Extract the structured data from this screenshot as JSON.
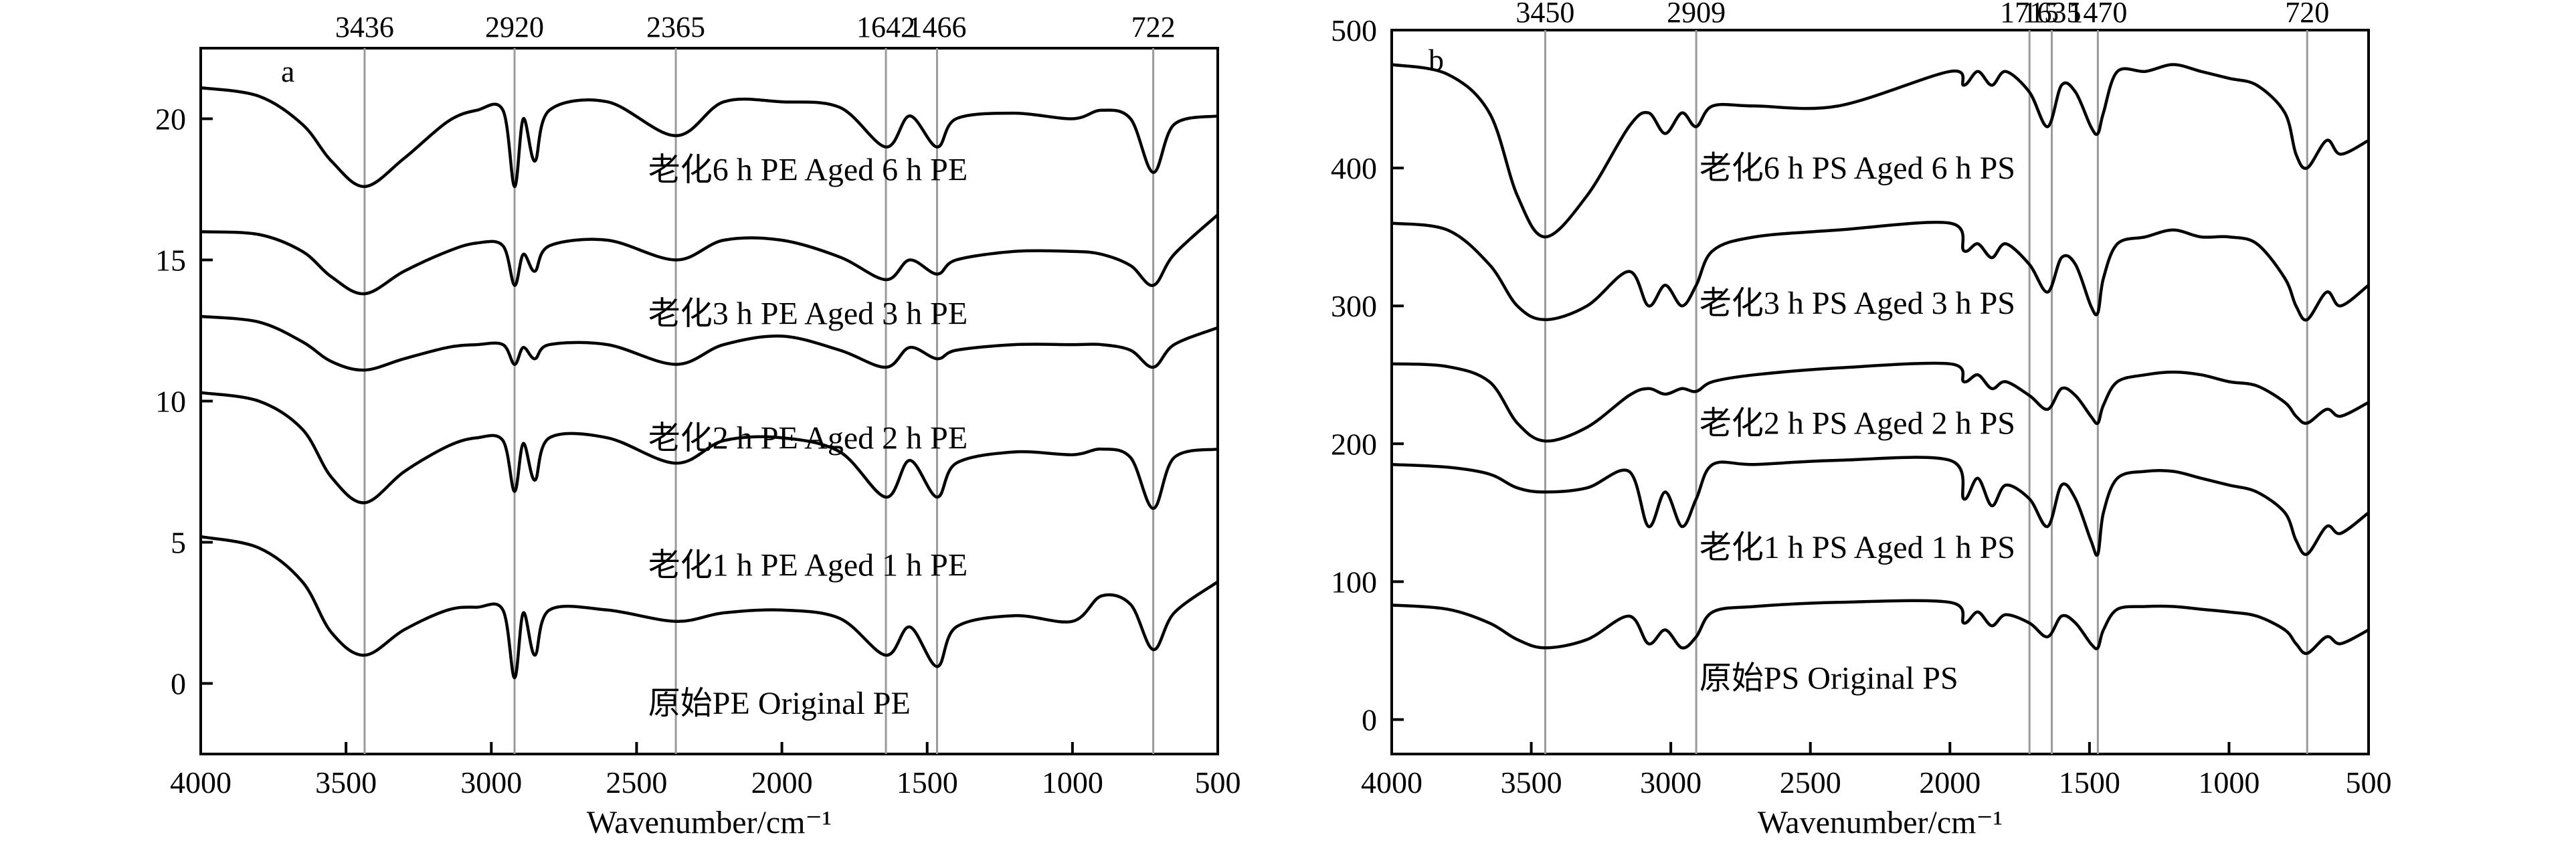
{
  "chart_data": [
    {
      "type": "line",
      "panel_label": "a",
      "xlabel": "Wavenumber/cm⁻¹",
      "ylabel": "",
      "xlim": [
        4000,
        500
      ],
      "ylim": [
        -2.5,
        22.5
      ],
      "x_reversed": true,
      "xticks": [
        4000,
        3500,
        3000,
        2500,
        2000,
        1500,
        1000,
        500
      ],
      "yticks": [
        0,
        5,
        10,
        15,
        20
      ],
      "peak_lines": [
        3436,
        2920,
        2365,
        1642,
        1466,
        722
      ],
      "peak_labels": [
        "3436",
        "2920",
        "2365",
        "1642",
        "1466",
        "722"
      ],
      "grid": false,
      "series": [
        {
          "label": "老化6 h PE Aged 6 h PE",
          "label_y": 18.2,
          "x": [
            4000,
            3800,
            3650,
            3550,
            3436,
            3300,
            3150,
            3050,
            2960,
            2920,
            2890,
            2850,
            2800,
            2600,
            2365,
            2200,
            2000,
            1800,
            1642,
            1560,
            1466,
            1400,
            1200,
            1000,
            900,
            800,
            722,
            650,
            500
          ],
          "y": [
            21.1,
            20.8,
            19.8,
            18.5,
            17.6,
            18.6,
            19.9,
            20.3,
            20.3,
            17.6,
            20.0,
            18.5,
            20.3,
            20.6,
            19.4,
            20.6,
            20.6,
            20.4,
            19.0,
            20.1,
            19.0,
            20.0,
            20.2,
            20.0,
            20.3,
            20.0,
            18.1,
            19.8,
            20.1
          ]
        },
        {
          "label": "老化3 h PE Aged 3 h PE",
          "label_y": 13.1,
          "x": [
            4000,
            3800,
            3650,
            3550,
            3436,
            3300,
            3150,
            3050,
            2960,
            2920,
            2890,
            2850,
            2800,
            2600,
            2365,
            2200,
            2000,
            1800,
            1642,
            1560,
            1466,
            1400,
            1200,
            1000,
            900,
            800,
            722,
            650,
            500
          ],
          "y": [
            16.0,
            15.9,
            15.3,
            14.4,
            13.8,
            14.6,
            15.3,
            15.6,
            15.5,
            14.1,
            15.2,
            14.6,
            15.5,
            15.7,
            15.0,
            15.7,
            15.7,
            15.1,
            14.3,
            15.0,
            14.5,
            15.0,
            15.3,
            15.3,
            15.2,
            14.8,
            14.1,
            15.2,
            16.6
          ]
        },
        {
          "label": "老化2 h PE Aged 2 h PE",
          "label_y": 8.7,
          "x": [
            4000,
            3800,
            3650,
            3550,
            3436,
            3300,
            3150,
            3050,
            2960,
            2920,
            2890,
            2850,
            2800,
            2600,
            2365,
            2200,
            2000,
            1800,
            1642,
            1560,
            1466,
            1400,
            1200,
            1000,
            900,
            800,
            722,
            650,
            500
          ],
          "y": [
            13.0,
            12.8,
            12.1,
            11.4,
            11.1,
            11.5,
            11.9,
            12.0,
            12.0,
            11.3,
            11.9,
            11.5,
            12.0,
            12.0,
            11.3,
            12.0,
            12.3,
            11.8,
            11.2,
            11.9,
            11.5,
            11.8,
            12.0,
            12.0,
            12.0,
            11.8,
            11.2,
            12.0,
            12.6
          ]
        },
        {
          "label": "老化1 h PE Aged 1 h PE",
          "label_y": 4.2,
          "x": [
            4000,
            3800,
            3650,
            3550,
            3436,
            3300,
            3150,
            3050,
            2960,
            2920,
            2890,
            2850,
            2800,
            2600,
            2365,
            2200,
            2000,
            1800,
            1642,
            1560,
            1466,
            1400,
            1200,
            1000,
            900,
            800,
            722,
            650,
            500
          ],
          "y": [
            10.3,
            10.0,
            9.0,
            7.3,
            6.4,
            7.5,
            8.4,
            8.7,
            8.6,
            6.8,
            8.5,
            7.2,
            8.7,
            8.7,
            7.8,
            8.6,
            8.7,
            8.2,
            6.6,
            7.9,
            6.6,
            7.8,
            8.2,
            8.1,
            8.3,
            8.0,
            6.2,
            8.0,
            8.3
          ]
        },
        {
          "label": "原始PE Original PE",
          "label_y": -0.7,
          "x": [
            4000,
            3800,
            3650,
            3550,
            3436,
            3300,
            3150,
            3050,
            2960,
            2920,
            2890,
            2850,
            2800,
            2600,
            2365,
            2200,
            2000,
            1800,
            1642,
            1560,
            1466,
            1400,
            1200,
            1000,
            900,
            800,
            722,
            650,
            500
          ],
          "y": [
            5.2,
            4.8,
            3.6,
            1.8,
            1.0,
            1.9,
            2.6,
            2.7,
            2.6,
            0.2,
            2.5,
            1.0,
            2.6,
            2.6,
            2.2,
            2.5,
            2.6,
            2.3,
            1.0,
            2.0,
            0.6,
            2.0,
            2.4,
            2.2,
            3.1,
            2.8,
            1.2,
            2.5,
            3.6
          ]
        }
      ]
    },
    {
      "type": "line",
      "panel_label": "b",
      "xlabel": "Wavenumber/cm⁻¹",
      "ylabel": "",
      "xlim": [
        4000,
        500
      ],
      "ylim": [
        -25,
        500
      ],
      "x_reversed": true,
      "xticks": [
        4000,
        3500,
        3000,
        2500,
        2000,
        1500,
        1000,
        500
      ],
      "yticks": [
        0,
        100,
        200,
        300,
        400,
        500
      ],
      "peak_lines": [
        3450,
        2909,
        1715,
        1635,
        1470,
        720
      ],
      "peak_labels": [
        "3450",
        "2909",
        "1715",
        "1635",
        "1470",
        "720"
      ],
      "grid": false,
      "series": [
        {
          "label": "老化6 h PS Aged 6 h PS",
          "label_y": 400,
          "x": [
            4000,
            3800,
            3650,
            3550,
            3450,
            3300,
            3150,
            3080,
            3020,
            2960,
            2909,
            2850,
            2700,
            2400,
            2000,
            1950,
            1900,
            1850,
            1800,
            1715,
            1650,
            1600,
            1550,
            1495,
            1470,
            1450,
            1400,
            1300,
            1200,
            1100,
            1000,
            900,
            800,
            760,
            720,
            650,
            600,
            500
          ],
          "y": [
            475,
            468,
            440,
            380,
            350,
            380,
            430,
            440,
            425,
            440,
            430,
            445,
            445,
            445,
            470,
            460,
            470,
            460,
            470,
            455,
            430,
            460,
            455,
            430,
            425,
            440,
            470,
            470,
            475,
            470,
            465,
            460,
            440,
            410,
            400,
            420,
            410,
            420
          ]
        },
        {
          "label": "老化3 h PS Aged 3 h PS",
          "label_y": 302,
          "x": [
            4000,
            3800,
            3650,
            3550,
            3450,
            3300,
            3150,
            3080,
            3020,
            2960,
            2909,
            2850,
            2700,
            2400,
            2000,
            1950,
            1900,
            1850,
            1800,
            1715,
            1650,
            1600,
            1550,
            1495,
            1470,
            1450,
            1400,
            1300,
            1200,
            1100,
            1000,
            900,
            800,
            760,
            720,
            650,
            600,
            500
          ],
          "y": [
            360,
            355,
            330,
            300,
            290,
            300,
            325,
            300,
            315,
            300,
            315,
            340,
            350,
            355,
            360,
            340,
            345,
            335,
            345,
            330,
            310,
            335,
            330,
            300,
            295,
            320,
            345,
            350,
            355,
            350,
            350,
            345,
            320,
            300,
            290,
            310,
            300,
            315
          ]
        },
        {
          "label": "老化2 h PS Aged 2 h PS",
          "label_y": 215,
          "x": [
            4000,
            3800,
            3650,
            3550,
            3450,
            3300,
            3150,
            3080,
            3020,
            2960,
            2909,
            2850,
            2700,
            2400,
            2000,
            1950,
            1900,
            1850,
            1800,
            1715,
            1650,
            1600,
            1550,
            1495,
            1470,
            1450,
            1400,
            1300,
            1200,
            1100,
            1000,
            900,
            800,
            760,
            720,
            650,
            600,
            500
          ],
          "y": [
            258,
            256,
            245,
            215,
            202,
            212,
            235,
            240,
            236,
            240,
            238,
            245,
            250,
            255,
            258,
            245,
            250,
            240,
            245,
            235,
            225,
            240,
            235,
            220,
            215,
            228,
            245,
            250,
            252,
            250,
            245,
            242,
            230,
            220,
            215,
            225,
            220,
            230
          ]
        },
        {
          "label": "老化1 h PS Aged 1 h PS",
          "label_y": 125,
          "x": [
            4000,
            3800,
            3650,
            3550,
            3450,
            3300,
            3150,
            3080,
            3020,
            2960,
            2909,
            2850,
            2700,
            2400,
            2000,
            1950,
            1900,
            1850,
            1800,
            1715,
            1650,
            1600,
            1550,
            1495,
            1470,
            1450,
            1400,
            1300,
            1200,
            1100,
            1000,
            900,
            800,
            760,
            720,
            650,
            600,
            500
          ],
          "y": [
            185,
            183,
            178,
            168,
            165,
            168,
            180,
            140,
            165,
            140,
            160,
            185,
            185,
            188,
            188,
            160,
            175,
            155,
            170,
            160,
            140,
            170,
            160,
            130,
            120,
            150,
            175,
            180,
            180,
            175,
            170,
            165,
            150,
            130,
            120,
            140,
            135,
            150
          ]
        },
        {
          "label": "原始PS Original PS",
          "label_y": 30,
          "x": [
            4000,
            3800,
            3650,
            3550,
            3450,
            3300,
            3150,
            3080,
            3020,
            2960,
            2909,
            2850,
            2700,
            2400,
            2000,
            1950,
            1900,
            1850,
            1800,
            1715,
            1650,
            1600,
            1550,
            1495,
            1470,
            1450,
            1400,
            1300,
            1200,
            1100,
            1000,
            900,
            800,
            760,
            720,
            650,
            600,
            500
          ],
          "y": [
            83,
            80,
            70,
            58,
            52,
            58,
            75,
            55,
            65,
            52,
            60,
            78,
            82,
            85,
            85,
            70,
            78,
            68,
            76,
            70,
            60,
            75,
            70,
            55,
            52,
            65,
            80,
            82,
            82,
            80,
            78,
            75,
            65,
            55,
            48,
            60,
            55,
            65
          ]
        }
      ]
    }
  ],
  "colors": {
    "curve": "#000000",
    "peak_line": "#9a9a9a",
    "axis": "#000000",
    "background": "#ffffff"
  }
}
